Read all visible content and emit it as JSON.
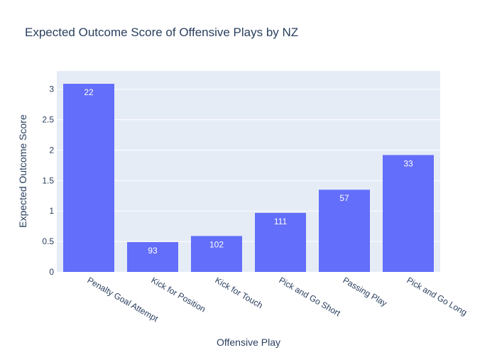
{
  "chart_data": {
    "type": "bar",
    "title": "Expected Outcome Score of Offensive Plays by NZ",
    "xlabel": "Offensive Play",
    "ylabel": "Expected Outcome Score",
    "categories": [
      "Penalty Goal Attempt",
      "Kick for Position",
      "Kick for Touch",
      "Pick and Go Short",
      "Passing Play",
      "Pick and Go Long"
    ],
    "values": [
      3.09,
      0.49,
      0.59,
      0.97,
      1.35,
      1.92
    ],
    "bar_labels": [
      "22",
      "93",
      "102",
      "111",
      "57",
      "33"
    ],
    "ylim": [
      0,
      3.3
    ],
    "yticks": [
      0,
      0.5,
      1,
      1.5,
      2,
      2.5,
      3
    ],
    "ytick_labels": [
      "0",
      "0.5",
      "1",
      "1.5",
      "2",
      "2.5",
      "3"
    ],
    "grid": true,
    "colors": {
      "bar": "#636efa",
      "plot_bg": "#e5ecf6",
      "grid": "#ffffff",
      "text": "#2a3f5f"
    }
  }
}
